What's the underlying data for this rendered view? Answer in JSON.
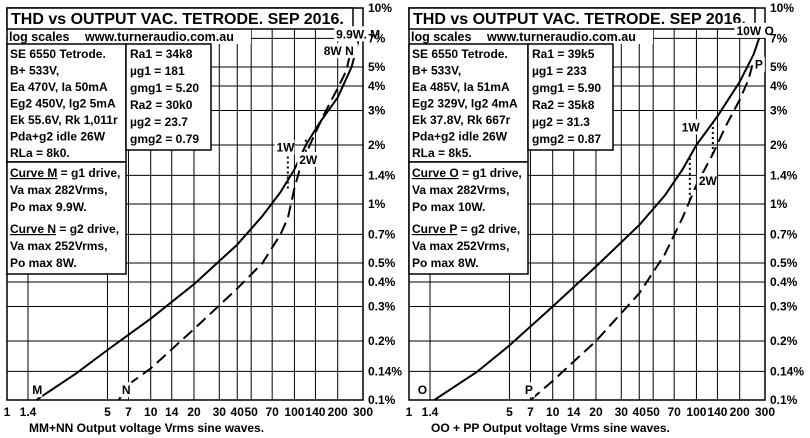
{
  "chart_data": [
    {
      "type": "line",
      "title": "THD vs OUTPUT VAC. TETRODE. SEP 2016.",
      "scale_note": "log scales",
      "site": "www.turneraudio.com.au",
      "x_scale": "log",
      "y_scale": "log",
      "xlim": [
        1,
        300
      ],
      "ylim": [
        0.1,
        10
      ],
      "x_ticks": [
        "1",
        "1.4",
        "5",
        "7",
        "10",
        "14",
        "20",
        "30",
        "40",
        "50",
        "70",
        "100",
        "140",
        "200",
        "300"
      ],
      "y_ticks": [
        "10%",
        "7%",
        "5%",
        "4%",
        "3%",
        "2%",
        "1.4%",
        "1%",
        "0.7%",
        "0.5%",
        "0.4%",
        "0.3%",
        "0.2%",
        "0.14%",
        "0.1%"
      ],
      "xlabel": "MM+NN  Output voltage Vrms sine waves.",
      "info_left": [
        "SE 6550 Tetrode.",
        "B+ 533V,",
        "Ea 470V, Ia 50mA",
        "Eg2 450V, Ig2 5mA",
        "Ek 55.6V, Rk 1,011r",
        "Pda+g2 idle 26W",
        "RLa = 8k0."
      ],
      "info_right": [
        "Ra1 = 34k8",
        "µg1 = 181",
        "gmg1 = 5.20",
        "Ra2 =  30k0",
        "µg2 = 23.7",
        "gmg2 = 0.79"
      ],
      "curve_notes": [
        {
          "head": "Curve M",
          "rest": " = g1 drive,",
          "lines": [
            "Va max 282Vrms,",
            "Po max 9.9W."
          ]
        },
        {
          "head": "Curve N",
          "rest": " = g2 drive,",
          "lines": [
            "Va max 252Vrms,",
            "Po max 8W."
          ]
        }
      ],
      "series": [
        {
          "name": "M",
          "style": "solid",
          "x": [
            1.6,
            3,
            5,
            10,
            20,
            40,
            60,
            80,
            100,
            120,
            150,
            200,
            250,
            282
          ],
          "y": [
            0.1,
            0.136,
            0.18,
            0.26,
            0.39,
            0.62,
            0.87,
            1.15,
            1.5,
            2.0,
            2.6,
            3.5,
            5.0,
            7.0
          ]
        },
        {
          "name": "N",
          "style": "dashed",
          "x": [
            6,
            7,
            10,
            20,
            40,
            60,
            80,
            90,
            100,
            110,
            130,
            160,
            200,
            230,
            252
          ],
          "y": [
            0.1,
            0.12,
            0.145,
            0.23,
            0.37,
            0.5,
            0.7,
            0.85,
            1.2,
            1.55,
            2.05,
            2.85,
            3.9,
            4.8,
            6.5
          ]
        }
      ],
      "point_labels": [
        {
          "text": "9.9W. M",
          "x": 195,
          "y": 7.0
        },
        {
          "text": "8W N",
          "x": 160,
          "y": 5.75
        },
        {
          "text": "1W",
          "x": 75,
          "y": 1.85
        },
        {
          "text": "2W",
          "x": 108,
          "y": 1.6
        },
        {
          "text": "M",
          "x": 1.5,
          "y": 0.107
        },
        {
          "text": "N",
          "x": 6.3,
          "y": 0.107
        }
      ],
      "dotted_markers": [
        {
          "x": 90,
          "y1": 1.2,
          "y2": 2.0
        },
        {
          "x": 120,
          "y1": 1.55,
          "y2": 2.2
        }
      ]
    },
    {
      "type": "line",
      "title": "THD vs OUTPUT VAC. TETRODE. SEP 2016.",
      "scale_note": "log scales",
      "site": "www.turneraudio.com.au",
      "x_scale": "log",
      "y_scale": "log",
      "xlim": [
        1,
        300
      ],
      "ylim": [
        0.1,
        10
      ],
      "x_ticks": [
        "1",
        "1.4",
        "5",
        "7",
        "10",
        "14",
        "20",
        "30",
        "40",
        "50",
        "70",
        "100",
        "140",
        "200",
        "300"
      ],
      "y_ticks": [
        "10%",
        "7%",
        "5%",
        "4%",
        "3%",
        "2%",
        "1.4%",
        "1%",
        "0.7%",
        "0.5%",
        "0.4%",
        "0.3%",
        "0.2%",
        "0.14%",
        "0.1%"
      ],
      "xlabel": "OO  + PP  Output voltage Vrms sine waves.",
      "info_left": [
        "SE 6550 Tetrode.",
        "B+ 533V,",
        "Ea 485V, Ia 51mA",
        "Eg2 329V, Ig2 4mA",
        "Ek 37.8V, Rk 667r",
        "Pda+g2 idle 26W",
        "RLa = 8k5."
      ],
      "info_right": [
        "Ra1 = 39k5",
        "µg1 =  233",
        "gmg1 = 5.90",
        "Ra2 = 35k8",
        "µg2 = 31.3",
        "gmg2 = 0.87"
      ],
      "curve_notes": [
        {
          "head": "Curve O",
          "rest": " = g1 drive,",
          "lines": [
            "Va max 282Vrms,",
            "Po max 10W."
          ]
        },
        {
          "head": "Curve P",
          "rest": " = g2 drive,",
          "lines": [
            "Va max 252Vrms,",
            "Po max 8W."
          ]
        }
      ],
      "series": [
        {
          "name": "O",
          "style": "solid",
          "x": [
            1.5,
            3,
            5,
            10,
            20,
            40,
            60,
            80,
            100,
            140,
            200,
            250,
            282
          ],
          "y": [
            0.1,
            0.14,
            0.19,
            0.3,
            0.48,
            0.78,
            1.1,
            1.5,
            2.0,
            2.8,
            4.2,
            5.8,
            7.5
          ]
        },
        {
          "name": "P",
          "style": "dashed",
          "x": [
            7,
            10,
            20,
            40,
            60,
            80,
            100,
            130,
            160,
            200,
            230,
            252
          ],
          "y": [
            0.1,
            0.125,
            0.2,
            0.35,
            0.55,
            0.85,
            1.25,
            1.8,
            2.5,
            3.4,
            4.3,
            5.5
          ]
        }
      ],
      "point_labels": [
        {
          "text": "10W O",
          "x": 190,
          "y": 7.3
        },
        {
          "text": "P",
          "x": 255,
          "y": 4.9
        },
        {
          "text": "1W",
          "x": 79,
          "y": 2.35
        },
        {
          "text": "2W",
          "x": 104,
          "y": 1.25
        },
        {
          "text": "O",
          "x": 1.15,
          "y": 0.107
        },
        {
          "text": "P",
          "x": 6.4,
          "y": 0.107
        }
      ],
      "dotted_markers": [
        {
          "x": 90,
          "y1": 1.05,
          "y2": 1.75
        },
        {
          "x": 130,
          "y1": 1.8,
          "y2": 2.6
        }
      ]
    }
  ]
}
